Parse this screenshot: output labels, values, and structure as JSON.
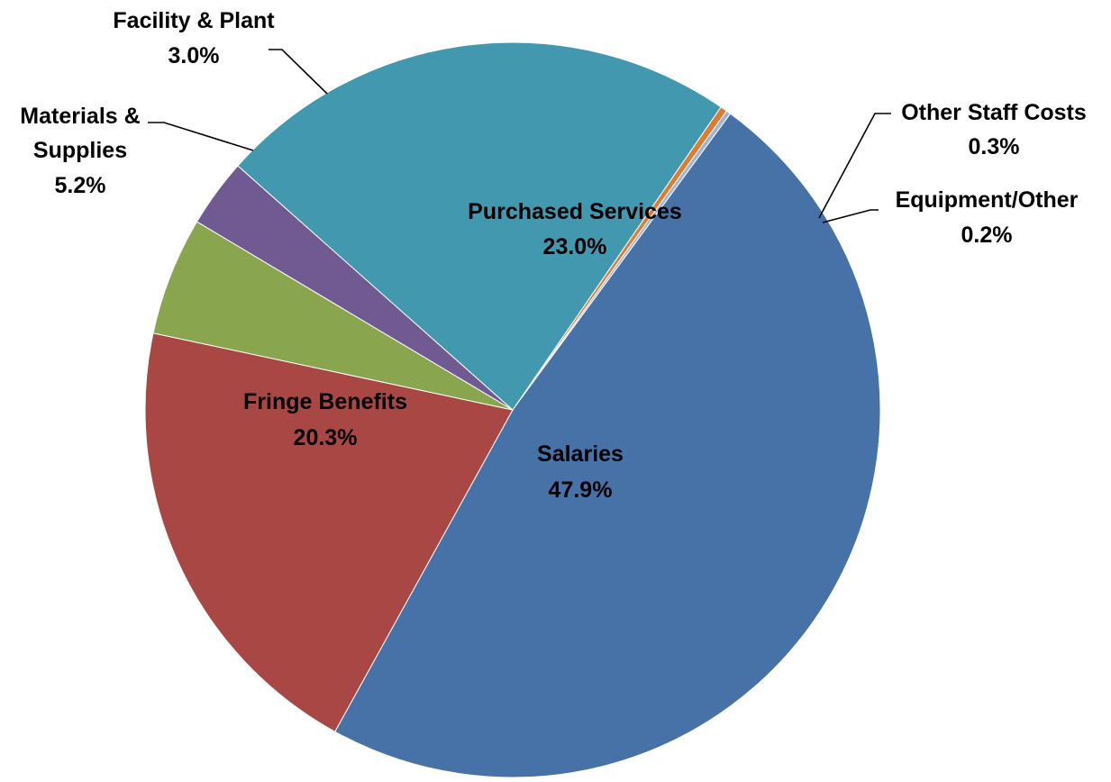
{
  "chart_data": {
    "type": "pie",
    "title": "",
    "slices": [
      {
        "label": "Other Staff Costs",
        "value": 0.3,
        "value_label": "0.3%",
        "color": "#E07B2E"
      },
      {
        "label": "Equipment/Other",
        "value": 0.2,
        "value_label": "0.2%",
        "color": "#9DB4DB"
      },
      {
        "label": "Salaries",
        "value": 47.9,
        "value_label": "47.9%",
        "color": "#4672A8"
      },
      {
        "label": "Fringe Benefits",
        "value": 20.3,
        "value_label": "20.3%",
        "color": "#A84744"
      },
      {
        "label": "Materials & Supplies",
        "value": 5.2,
        "value_label": "5.2%",
        "color": "#89A54E"
      },
      {
        "label": "Facility & Plant",
        "value": 3.0,
        "value_label": "3.0%",
        "color": "#715991"
      },
      {
        "label": "Purchased Services",
        "value": 23.0,
        "value_label": "23.0%",
        "color": "#4198AF"
      }
    ],
    "legend": "none",
    "data_labels": "category name and percentage"
  }
}
